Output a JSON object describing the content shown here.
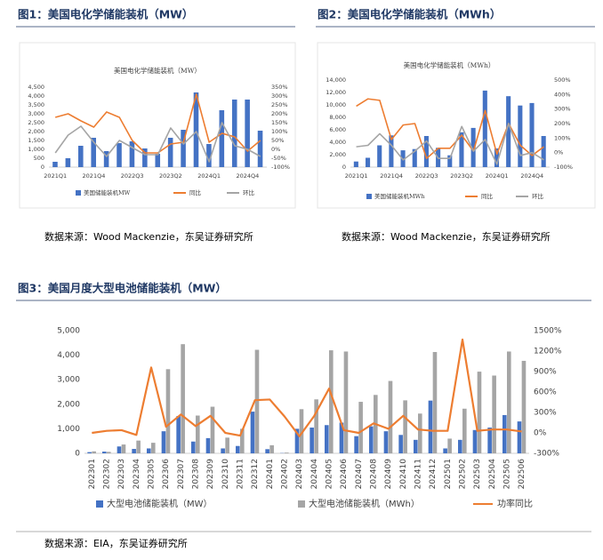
{
  "chart_data": [
    {
      "type": "bar",
      "title": "图1：美国电化学储能装机（MW）",
      "subtitle": "美国电化学储能装机（MW）",
      "categories": [
        "2021Q1",
        null,
        null,
        "2021Q4",
        null,
        null,
        "2022Q3",
        null,
        null,
        "2023Q2",
        null,
        null,
        "2024Q1",
        null,
        null,
        "2024Q4",
        null
      ],
      "series": [
        {
          "name": "美国储能装机MW",
          "color": "#4472c4",
          "values": [
            300,
            500,
            1200,
            1650,
            900,
            1350,
            1450,
            1050,
            750,
            1650,
            2100,
            4200,
            1300,
            3200,
            3800,
            3800,
            2050
          ]
        },
        {
          "name": "同比",
          "color": "#ed7d31",
          "axis": "y2",
          "values": [
            180,
            200,
            160,
            125,
            210,
            180,
            50,
            -20,
            -20,
            30,
            40,
            310,
            40,
            90,
            70,
            -10,
            50
          ]
        },
        {
          "name": "环比",
          "color": "#a5a5a5",
          "axis": "y2",
          "values": [
            -20,
            80,
            130,
            40,
            -40,
            50,
            10,
            -30,
            -30,
            120,
            30,
            100,
            -70,
            150,
            20,
            0,
            -40
          ]
        }
      ],
      "ylim": [
        0,
        4500
      ],
      "yticks": [
        0,
        500,
        {
          "value": 1000,
          "label": "1,000"
        },
        {
          "value": 1500,
          "label": "1,500"
        },
        {
          "value": 2000,
          "label": "2,000"
        },
        {
          "value": 2500,
          "label": "2,500"
        },
        {
          "value": 3000,
          "label": "3,000"
        },
        {
          "value": 3500,
          "label": "3,500"
        },
        {
          "value": 4000,
          "label": "4,000"
        },
        {
          "value": 4500,
          "label": "4,500"
        }
      ],
      "y2lim": [
        -100,
        350
      ],
      "y2ticks": [
        {
          "value": -100,
          "label": "-100%"
        },
        {
          "value": -50,
          "label": "-50%"
        },
        {
          "value": 0,
          "label": "0%"
        },
        {
          "value": 50,
          "label": "50%"
        },
        {
          "value": 100,
          "label": "100%"
        },
        {
          "value": 150,
          "label": "150%"
        },
        {
          "value": 200,
          "label": "200%"
        },
        {
          "value": 250,
          "label": "250%"
        },
        {
          "value": 300,
          "label": "300%"
        },
        {
          "value": 350,
          "label": "350%"
        }
      ],
      "grid": false,
      "source": "数据来源：Wood Mackenzie，东吴证券研究所"
    },
    {
      "type": "bar",
      "title": "图2：美国电化学储能装机（MWh）",
      "subtitle": "美国电化学储能装机（MWh）",
      "categories": [
        "2021Q1",
        null,
        null,
        "2021Q4",
        null,
        null,
        "2022Q3",
        null,
        null,
        "2023Q2",
        null,
        null,
        "2024Q1",
        null,
        null,
        "2024Q4",
        null
      ],
      "series": [
        {
          "name": "美国储能装机MWh",
          "color": "#4472c4",
          "values": [
            900,
            1500,
            3500,
            5100,
            2700,
            2900,
            5000,
            3100,
            1900,
            5600,
            6300,
            12300,
            3000,
            11400,
            9900,
            10300,
            5000
          ]
        },
        {
          "name": "同比",
          "color": "#ed7d31",
          "axis": "y2",
          "values": [
            320,
            370,
            360,
            90,
            190,
            200,
            -40,
            30,
            30,
            120,
            10,
            290,
            -10,
            200,
            50,
            -20,
            40
          ]
        },
        {
          "name": "环比",
          "color": "#a5a5a5",
          "axis": "y2",
          "values": [
            40,
            50,
            130,
            50,
            -50,
            10,
            80,
            -40,
            -40,
            180,
            10,
            90,
            -80,
            200,
            -20,
            0,
            -50
          ]
        }
      ],
      "ylim": [
        0,
        14000
      ],
      "yticks": [
        0,
        {
          "value": 2000,
          "label": "2,000"
        },
        {
          "value": 4000,
          "label": "4,000"
        },
        {
          "value": 6000,
          "label": "6,000"
        },
        {
          "value": 8000,
          "label": "8,000"
        },
        {
          "value": 10000,
          "label": "10,000"
        },
        {
          "value": 12000,
          "label": "12,000"
        },
        {
          "value": 14000,
          "label": "14,000"
        }
      ],
      "y2lim": [
        -100,
        500
      ],
      "y2ticks": [
        {
          "value": -100,
          "label": "-100%"
        },
        {
          "value": 0,
          "label": "0%"
        },
        {
          "value": 100,
          "label": "100%"
        },
        {
          "value": 200,
          "label": "200%"
        },
        {
          "value": 300,
          "label": "300%"
        },
        {
          "value": 400,
          "label": "400%"
        },
        {
          "value": 500,
          "label": "500%"
        }
      ],
      "grid": false,
      "source": "数据来源：Wood Mackenzie，东吴证券研究所"
    },
    {
      "type": "bar",
      "title": "图3：美国月度大型电池储能装机（MW）",
      "categories": [
        "202301",
        "202302",
        "202303",
        "202304",
        "202305",
        "202306",
        "202307",
        "202308",
        "202309",
        "202310",
        "202311",
        "202312",
        "202401",
        "202402",
        "202403",
        "202404",
        "202405",
        "202406",
        "202407",
        "202408",
        "202409",
        "202410",
        "202411",
        "202412",
        "202501",
        "202502",
        "202503",
        "202504",
        "202505",
        "202506"
      ],
      "series": [
        {
          "name": "大型电池储能装机（MW）",
          "color": "#4472c4",
          "values": [
            50,
            70,
            280,
            180,
            200,
            900,
            1520,
            480,
            620,
            200,
            300,
            1700,
            170,
            10,
            1000,
            1050,
            1150,
            1250,
            700,
            1100,
            900,
            750,
            550,
            2150,
            200,
            550,
            950,
            1050,
            1560,
            1300
          ]
        },
        {
          "name": "大型电池储能装机（MWh）",
          "color": "#a5a5a5",
          "values": [
            80,
            60,
            360,
            520,
            430,
            3430,
            4450,
            1540,
            1900,
            640,
            1000,
            4220,
            330,
            30,
            1800,
            2200,
            4200,
            4150,
            2100,
            2380,
            2950,
            2160,
            1620,
            4130,
            600,
            1820,
            3330,
            3170,
            4150,
            3770
          ]
        },
        {
          "name": "功率同比",
          "color": "#ed7d31",
          "axis": "y2",
          "values": [
            0,
            30,
            40,
            -30,
            960,
            90,
            270,
            100,
            250,
            0,
            -40,
            480,
            490,
            240,
            -50,
            250,
            650,
            40,
            0,
            140,
            60,
            250,
            50,
            30,
            30,
            1370,
            30,
            50,
            50,
            20
          ]
        }
      ],
      "ylim": [
        0,
        5000
      ],
      "yticks": [
        0,
        {
          "value": 1000,
          "label": "1,000"
        },
        {
          "value": 2000,
          "label": "2,000"
        },
        {
          "value": 3000,
          "label": "3,000"
        },
        {
          "value": 4000,
          "label": "4,000"
        },
        {
          "value": 5000,
          "label": "5,000"
        }
      ],
      "y2lim": [
        -300,
        1500
      ],
      "y2ticks": [
        {
          "value": -300,
          "label": "-300%"
        },
        {
          "value": 0,
          "label": "0%"
        },
        {
          "value": 300,
          "label": "300%"
        },
        {
          "value": 600,
          "label": "600%"
        },
        {
          "value": 900,
          "label": "900%"
        },
        {
          "value": 1200,
          "label": "1200%"
        },
        {
          "value": 1500,
          "label": "1500%"
        }
      ],
      "grid": false,
      "source": "数据来源：EIA，东吴证券研究所"
    }
  ]
}
